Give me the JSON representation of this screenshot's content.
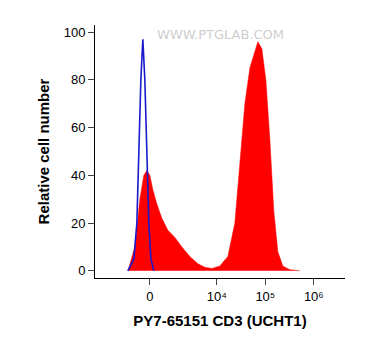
{
  "chart_data": {
    "type": "histogram",
    "xlabel": "PY7-65151 CD3 (UCHT1)",
    "ylabel": "Relative cell number",
    "annotations": [
      "WWW.PTGLAB.COM"
    ],
    "xlim": [
      -5600,
      4400000
    ],
    "ylim": [
      -3,
      103
    ],
    "xticks": [
      0,
      {
        "value": 10000,
        "label": "10⁴"
      },
      {
        "value": 100000,
        "label": "10⁵"
      },
      {
        "value": 1000000,
        "label": "10⁶"
      }
    ],
    "yticks": [
      0,
      20,
      40,
      60,
      80,
      100
    ],
    "grid": false,
    "series": [
      {
        "type": "area",
        "color": "#ff0000",
        "x": [
          -1034,
          -644,
          -410,
          -241,
          -119,
          0,
          119,
          282,
          501,
          803,
          1241,
          1815,
          2716,
          4027,
          5640,
          7880,
          11545,
          16890,
          23560,
          29860,
          37900,
          48060,
          60900,
          70220,
          84970,
          102700,
          124300,
          150000,
          181500,
          229900,
          320700,
          515600
        ],
        "values": [
          0,
          10,
          30,
          40,
          42,
          40,
          34,
          28,
          22,
          17,
          14,
          10,
          6,
          3,
          1.5,
          1,
          2,
          6,
          20,
          45,
          70,
          85,
          92,
          96,
          93,
          80,
          55,
          25,
          8,
          2,
          0.5,
          0
        ]
      },
      {
        "type": "line",
        "color": "#1a1acc",
        "x": [
          -1034,
          -696,
          -547,
          -455,
          -367,
          -282,
          -200,
          -119,
          -40,
          40,
          159
        ],
        "values": [
          0,
          5,
          20,
          50,
          80,
          97,
          80,
          50,
          20,
          5,
          0
        ]
      }
    ]
  }
}
